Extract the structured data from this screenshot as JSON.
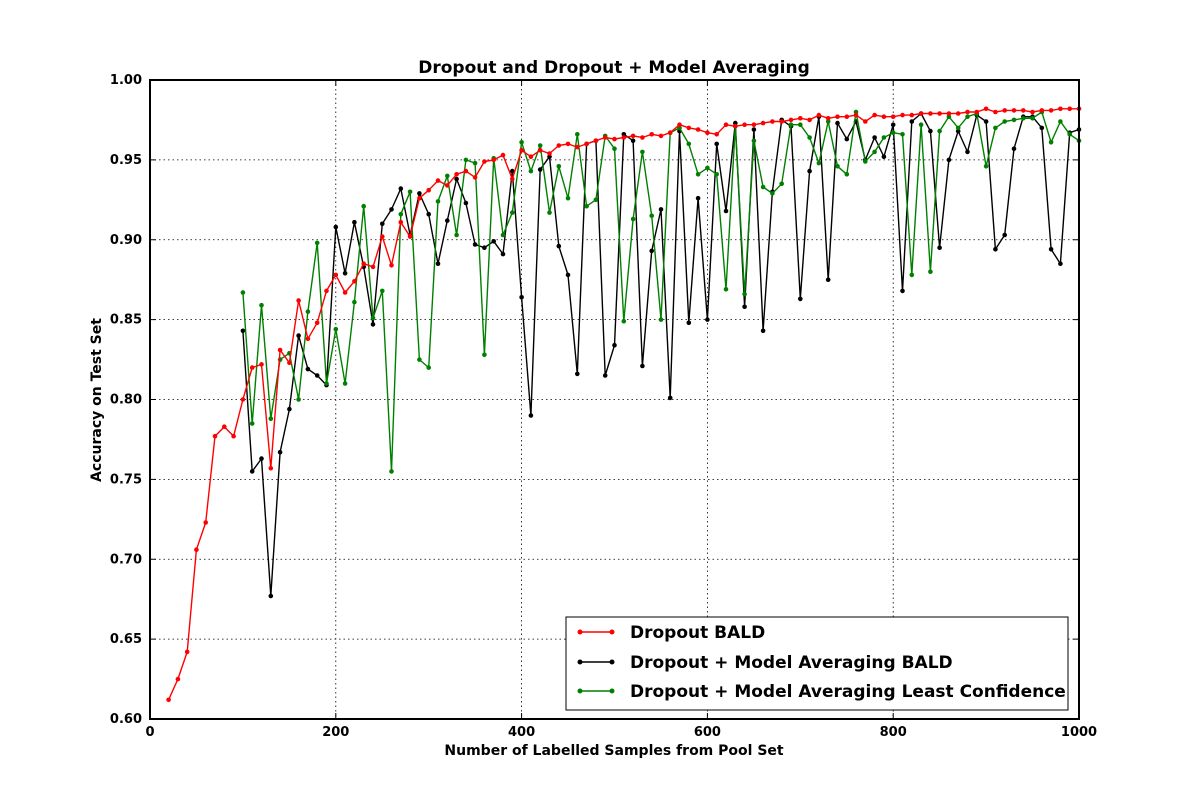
{
  "chart_data": {
    "type": "line",
    "title": "Dropout and Dropout + Model Averaging",
    "xlabel": "Number of Labelled Samples from Pool Set",
    "ylabel": "Accuracy on Test Set",
    "xlim": [
      0,
      1000
    ],
    "ylim": [
      0.6,
      1.0
    ],
    "xticks": [
      0,
      200,
      400,
      600,
      800,
      1000
    ],
    "xtick_labels": [
      "0",
      "200",
      "400",
      "600",
      "800",
      "1000"
    ],
    "yticks": [
      0.6,
      0.65,
      0.7,
      0.75,
      0.8,
      0.85,
      0.9,
      0.95,
      1.0
    ],
    "ytick_labels": [
      "0.60",
      "0.65",
      "0.70",
      "0.75",
      "0.80",
      "0.85",
      "0.90",
      "0.95",
      "1.00"
    ],
    "grid": true,
    "legend_position": "lower-right",
    "series": [
      {
        "name": "Dropout BALD",
        "color": "#ff0000",
        "x": [
          20,
          30,
          40,
          50,
          60,
          70,
          80,
          90,
          100,
          110,
          120,
          130,
          140,
          150,
          160,
          170,
          180,
          190,
          200,
          210,
          220,
          230,
          240,
          250,
          260,
          270,
          280,
          290,
          300,
          310,
          320,
          330,
          340,
          350,
          360,
          370,
          380,
          390,
          400,
          410,
          420,
          430,
          440,
          450,
          460,
          470,
          480,
          490,
          500,
          510,
          520,
          530,
          540,
          550,
          560,
          570,
          580,
          590,
          600,
          610,
          620,
          630,
          640,
          650,
          660,
          670,
          680,
          690,
          700,
          710,
          720,
          730,
          740,
          750,
          760,
          770,
          780,
          790,
          800,
          810,
          820,
          830,
          840,
          850,
          860,
          870,
          880,
          890,
          900,
          910,
          920,
          930,
          940,
          950,
          960,
          970,
          980,
          990,
          1000
        ],
        "values": [
          0.612,
          0.625,
          0.642,
          0.706,
          0.723,
          0.777,
          0.783,
          0.777,
          0.8,
          0.82,
          0.822,
          0.757,
          0.831,
          0.823,
          0.862,
          0.838,
          0.848,
          0.868,
          0.878,
          0.867,
          0.874,
          0.885,
          0.883,
          0.902,
          0.884,
          0.911,
          0.902,
          0.926,
          0.931,
          0.937,
          0.934,
          0.941,
          0.943,
          0.939,
          0.949,
          0.95,
          0.953,
          0.938,
          0.956,
          0.952,
          0.956,
          0.954,
          0.959,
          0.96,
          0.958,
          0.96,
          0.962,
          0.964,
          0.963,
          0.964,
          0.965,
          0.964,
          0.966,
          0.965,
          0.967,
          0.972,
          0.97,
          0.969,
          0.967,
          0.966,
          0.972,
          0.971,
          0.972,
          0.972,
          0.973,
          0.974,
          0.974,
          0.975,
          0.976,
          0.975,
          0.978,
          0.976,
          0.977,
          0.977,
          0.978,
          0.974,
          0.978,
          0.977,
          0.977,
          0.978,
          0.978,
          0.979,
          0.979,
          0.979,
          0.979,
          0.979,
          0.98,
          0.98,
          0.982,
          0.98,
          0.981,
          0.981,
          0.981,
          0.98,
          0.981,
          0.981,
          0.982,
          0.982,
          0.982
        ]
      },
      {
        "name": "Dropout + Model Averaging BALD",
        "color": "#000000",
        "x": [
          100,
          110,
          120,
          130,
          140,
          150,
          160,
          170,
          180,
          190,
          200,
          210,
          220,
          230,
          240,
          250,
          260,
          270,
          280,
          290,
          300,
          310,
          320,
          330,
          340,
          350,
          360,
          370,
          380,
          390,
          400,
          410,
          420,
          430,
          440,
          450,
          460,
          470,
          480,
          490,
          500,
          510,
          520,
          530,
          540,
          550,
          560,
          570,
          580,
          590,
          600,
          610,
          620,
          630,
          640,
          650,
          660,
          670,
          680,
          690,
          700,
          710,
          720,
          730,
          740,
          750,
          760,
          770,
          780,
          790,
          800,
          810,
          820,
          830,
          840,
          850,
          860,
          870,
          880,
          890,
          900,
          910,
          920,
          930,
          940,
          950,
          960,
          970,
          980,
          990,
          1000
        ],
        "values": [
          0.843,
          0.755,
          0.763,
          0.677,
          0.767,
          0.794,
          0.84,
          0.819,
          0.815,
          0.809,
          0.908,
          0.879,
          0.911,
          0.883,
          0.847,
          0.91,
          0.919,
          0.932,
          0.903,
          0.929,
          0.916,
          0.885,
          0.912,
          0.938,
          0.923,
          0.897,
          0.895,
          0.899,
          0.891,
          0.943,
          0.864,
          0.79,
          0.944,
          0.952,
          0.896,
          0.878,
          0.816,
          0.96,
          0.962,
          0.815,
          0.834,
          0.966,
          0.962,
          0.821,
          0.893,
          0.919,
          0.801,
          0.968,
          0.848,
          0.926,
          0.85,
          0.96,
          0.918,
          0.973,
          0.858,
          0.969,
          0.843,
          0.93,
          0.975,
          0.971,
          0.863,
          0.943,
          0.977,
          0.875,
          0.973,
          0.963,
          0.974,
          0.95,
          0.964,
          0.952,
          0.972,
          0.868,
          0.974,
          0.979,
          0.968,
          0.895,
          0.95,
          0.968,
          0.955,
          0.978,
          0.974,
          0.894,
          0.903,
          0.957,
          0.977,
          0.977,
          0.97,
          0.894,
          0.885,
          0.967,
          0.969
        ]
      },
      {
        "name": "Dropout + Model Averaging Least Confidence",
        "color": "#008000",
        "x": [
          100,
          110,
          120,
          130,
          140,
          150,
          160,
          170,
          180,
          190,
          200,
          210,
          220,
          230,
          240,
          250,
          260,
          270,
          280,
          290,
          300,
          310,
          320,
          330,
          340,
          350,
          360,
          370,
          380,
          390,
          400,
          410,
          420,
          430,
          440,
          450,
          460,
          470,
          480,
          490,
          500,
          510,
          520,
          530,
          540,
          550,
          560,
          570,
          580,
          590,
          600,
          610,
          620,
          630,
          640,
          650,
          660,
          670,
          680,
          690,
          700,
          710,
          720,
          730,
          740,
          750,
          760,
          770,
          780,
          790,
          800,
          810,
          820,
          830,
          840,
          850,
          860,
          870,
          880,
          890,
          900,
          910,
          920,
          930,
          940,
          950,
          960,
          970,
          980,
          990,
          1000
        ],
        "values": [
          0.867,
          0.785,
          0.859,
          0.788,
          0.825,
          0.829,
          0.8,
          0.855,
          0.898,
          0.81,
          0.844,
          0.81,
          0.861,
          0.921,
          0.851,
          0.868,
          0.755,
          0.916,
          0.93,
          0.825,
          0.82,
          0.924,
          0.94,
          0.903,
          0.95,
          0.948,
          0.828,
          0.951,
          0.903,
          0.917,
          0.961,
          0.943,
          0.959,
          0.917,
          0.946,
          0.926,
          0.966,
          0.921,
          0.925,
          0.965,
          0.957,
          0.849,
          0.913,
          0.955,
          0.915,
          0.85,
          0.967,
          0.97,
          0.96,
          0.941,
          0.945,
          0.941,
          0.869,
          0.971,
          0.866,
          0.962,
          0.933,
          0.929,
          0.935,
          0.972,
          0.972,
          0.964,
          0.948,
          0.974,
          0.946,
          0.941,
          0.98,
          0.949,
          0.955,
          0.964,
          0.967,
          0.966,
          0.878,
          0.972,
          0.88,
          0.968,
          0.977,
          0.97,
          0.977,
          0.979,
          0.946,
          0.97,
          0.974,
          0.975,
          0.976,
          0.976,
          0.98,
          0.961,
          0.974,
          0.966,
          0.962
        ]
      }
    ]
  }
}
